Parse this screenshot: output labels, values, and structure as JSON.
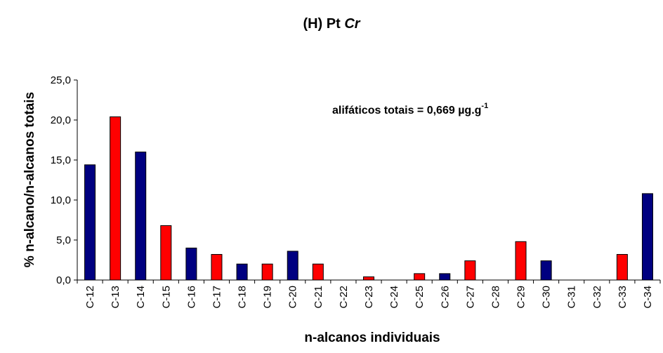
{
  "chart_data": {
    "type": "bar",
    "title": "(H) Pt Cr",
    "title_parts": {
      "prefix": "(H) Pt ",
      "italic": "Cr"
    },
    "xlabel": "n-alcanos individuais",
    "ylabel": "% n-alcano/n-alcanos totais",
    "ylim": [
      0,
      25
    ],
    "yticks": [
      0,
      5,
      10,
      15,
      20,
      25
    ],
    "ytick_labels": [
      "0,0",
      "5,0",
      "10,0",
      "15,0",
      "20,0",
      "25,0"
    ],
    "grid": false,
    "categories": [
      "C-12",
      "C-13",
      "C-14",
      "C-15",
      "C-16",
      "C-17",
      "C-18",
      "C-19",
      "C-20",
      "C-21",
      "C-22",
      "C-23",
      "C-24",
      "C-25",
      "C-26",
      "C-27",
      "C-28",
      "C-29",
      "C-30",
      "C-31",
      "C-32",
      "C-33",
      "C-34"
    ],
    "values": [
      14.4,
      20.4,
      16.0,
      6.8,
      4.0,
      3.2,
      2.0,
      2.0,
      3.6,
      2.0,
      0,
      0.4,
      0,
      0.8,
      0.8,
      2.4,
      0,
      4.8,
      2.4,
      0,
      0,
      3.2,
      10.8
    ],
    "bar_colors": [
      "#000080",
      "#ff0000",
      "#000080",
      "#ff0000",
      "#000080",
      "#ff0000",
      "#000080",
      "#ff0000",
      "#000080",
      "#ff0000",
      "#000080",
      "#ff0000",
      "#000080",
      "#ff0000",
      "#000080",
      "#ff0000",
      "#000080",
      "#ff0000",
      "#000080",
      "#ff0000",
      "#000080",
      "#ff0000",
      "#000080"
    ],
    "annotation": {
      "text": "alifáticos totais = 0,669 µg.g",
      "superscript": "-1"
    }
  }
}
